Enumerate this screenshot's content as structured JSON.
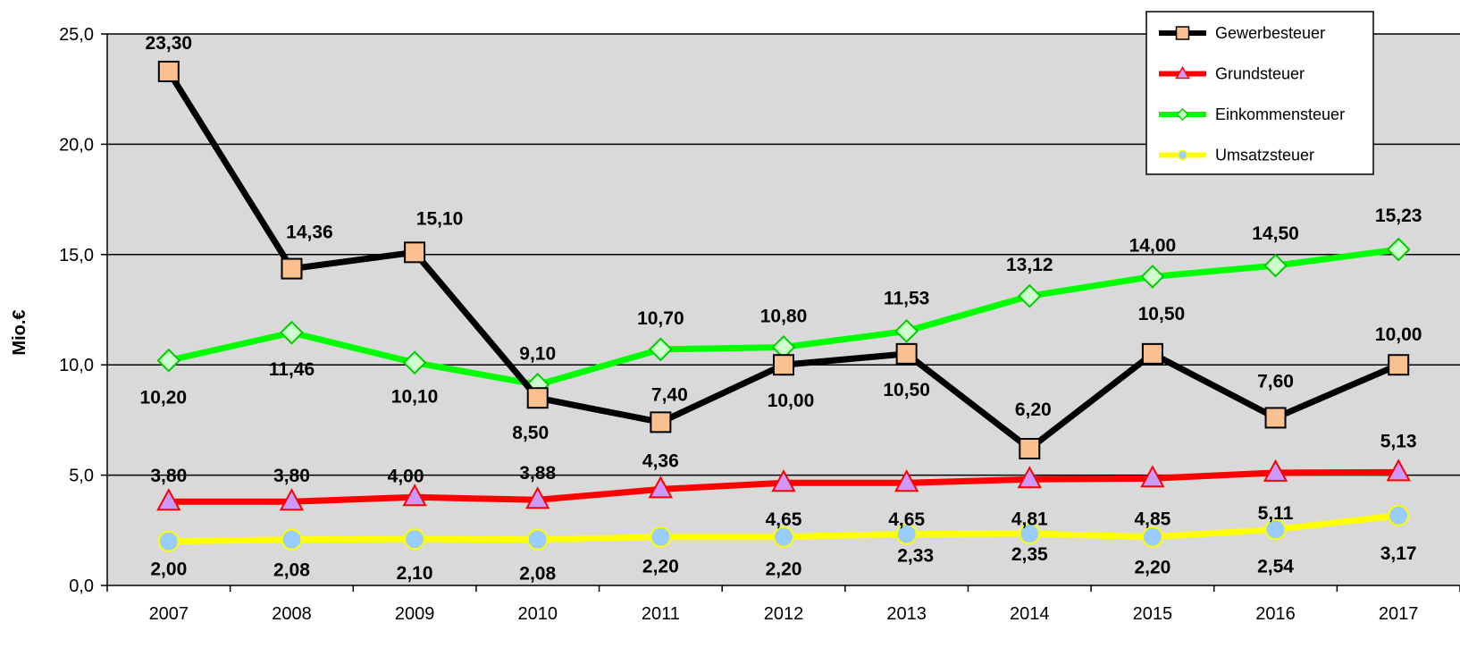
{
  "chart_data": {
    "type": "line",
    "title": "",
    "xlabel": "",
    "ylabel": "Mio.€",
    "ylim": [
      0,
      25
    ],
    "yticks": [
      "0,0",
      "5,0",
      "10,0",
      "15,0",
      "20,0",
      "25,0"
    ],
    "grid": "horizontal",
    "legend_position": "top-right",
    "plot_background": "#D9D9D9",
    "categories": [
      "2007",
      "2008",
      "2009",
      "2010",
      "2011",
      "2012",
      "2013",
      "2014",
      "2015",
      "2016",
      "2017"
    ],
    "series": [
      {
        "name": "Gewerbesteuer",
        "line_color": "#000000",
        "marker": "square",
        "marker_fill": "#FAC090",
        "marker_stroke": "#000000",
        "values": [
          23.3,
          14.36,
          15.1,
          8.5,
          7.4,
          10.0,
          10.5,
          6.2,
          10.5,
          7.6,
          10.0
        ],
        "labels": [
          "23,30",
          "14,36",
          "15,10",
          "8,50",
          "7,40",
          "10,00",
          "10,50",
          "6,20",
          "10,50",
          "7,60",
          "10,00"
        ]
      },
      {
        "name": "Grundsteuer",
        "line_color": "#FF0000",
        "marker": "triangle",
        "marker_fill": "#CC99FF",
        "marker_stroke": "#FF0000",
        "values": [
          3.8,
          3.8,
          4.0,
          3.88,
          4.36,
          4.65,
          4.65,
          4.81,
          4.85,
          5.11,
          5.13
        ],
        "labels": [
          "3,80",
          "3,80",
          "4,00",
          "3,88",
          "4,36",
          "4,65",
          "4,65",
          "4,81",
          "4,85",
          "5,11",
          "5,13"
        ]
      },
      {
        "name": "Einkommensteuer",
        "line_color": "#00FF00",
        "marker": "diamond",
        "marker_fill": "#CCFFCC",
        "marker_stroke": "#00CC00",
        "values": [
          10.2,
          11.46,
          10.1,
          9.1,
          10.7,
          10.8,
          11.53,
          13.12,
          14.0,
          14.5,
          15.23
        ],
        "labels": [
          "10,20",
          "11,46",
          "10,10",
          "9,10",
          "10,70",
          "10,80",
          "11,53",
          "13,12",
          "14,00",
          "14,50",
          "15,23"
        ]
      },
      {
        "name": "Umsatzsteuer",
        "line_color": "#FFFF00",
        "marker": "circle",
        "marker_fill": "#99CCFF",
        "marker_stroke": "#FFFF00",
        "values": [
          2.0,
          2.08,
          2.1,
          2.08,
          2.2,
          2.2,
          2.33,
          2.35,
          2.2,
          2.54,
          3.17
        ],
        "labels": [
          "2,00",
          "2,08",
          "2,10",
          "2,08",
          "2,20",
          "2,20",
          "2,33",
          "2,35",
          "2,20",
          "2,54",
          "3,17"
        ]
      }
    ]
  }
}
